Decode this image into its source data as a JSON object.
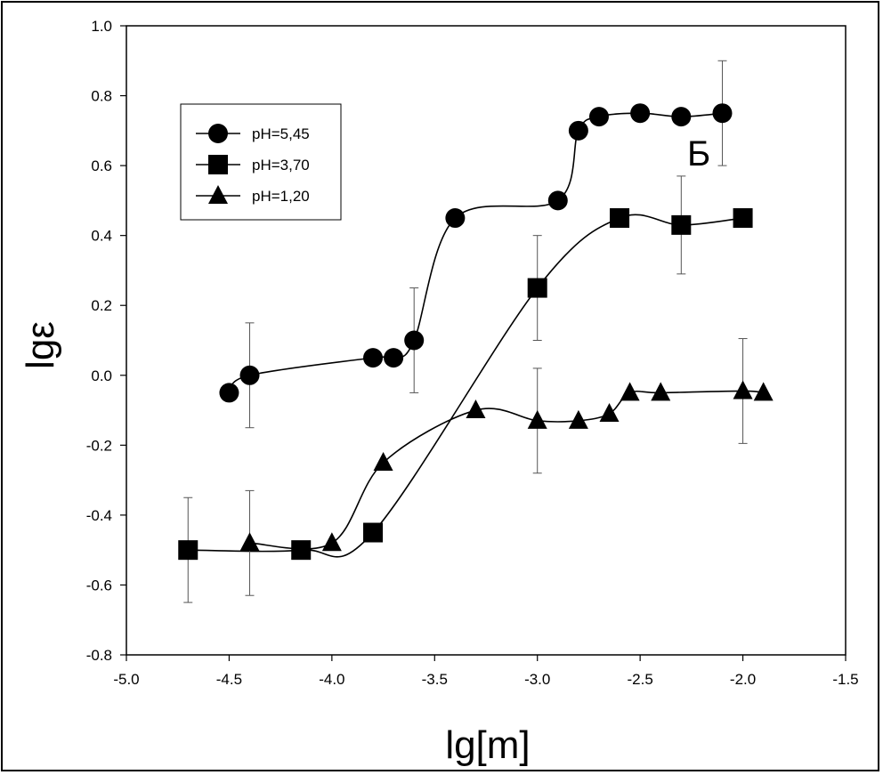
{
  "chart_data": {
    "type": "line",
    "title": "",
    "panel_label": "Б",
    "xlabel": "lg[m]",
    "ylabel": "lgε",
    "xlim": [
      -5.0,
      -1.5
    ],
    "ylim": [
      -0.8,
      1.0
    ],
    "x_ticks": [
      "-5.0",
      "-4.5",
      "-4.0",
      "-3.5",
      "-3.0",
      "-2.5",
      "-2.0",
      "-1.5"
    ],
    "y_ticks": [
      "1.0",
      "0.8",
      "0.6",
      "0.4",
      "0.2",
      "0.0",
      "-0.2",
      "-0.4",
      "-0.6",
      "-0.8"
    ],
    "x_tick_values": [
      -5.0,
      -4.5,
      -4.0,
      -3.5,
      -3.0,
      -2.5,
      -2.0,
      -1.5
    ],
    "y_tick_values": [
      1.0,
      0.8,
      0.6,
      0.4,
      0.2,
      0.0,
      -0.2,
      -0.4,
      -0.6,
      -0.8
    ],
    "legend_position": "top-left",
    "series": [
      {
        "name": "pH=5,45",
        "marker": "circle",
        "x": [
          -4.5,
          -4.4,
          -3.8,
          -3.7,
          -3.6,
          -3.4,
          -2.9,
          -2.8,
          -2.7,
          -2.5,
          -2.3,
          -2.1
        ],
        "y": [
          -0.05,
          0.0,
          0.05,
          0.05,
          0.1,
          0.45,
          0.5,
          0.7,
          0.74,
          0.75,
          0.74,
          0.75
        ],
        "error_bars": [
          {
            "x": -4.4,
            "low": -0.15,
            "high": 0.15
          },
          {
            "x": -3.6,
            "low": -0.05,
            "high": 0.25
          },
          {
            "x": -2.1,
            "low": 0.6,
            "high": 0.9
          }
        ]
      },
      {
        "name": "pH=3,70",
        "marker": "square",
        "x": [
          -4.7,
          -4.15,
          -3.8,
          -3.0,
          -2.6,
          -2.3,
          -2.0
        ],
        "y": [
          -0.5,
          -0.5,
          -0.45,
          0.25,
          0.45,
          0.43,
          0.45
        ],
        "error_bars": [
          {
            "x": -4.7,
            "low": -0.65,
            "high": -0.35
          },
          {
            "x": -3.0,
            "low": 0.1,
            "high": 0.4
          },
          {
            "x": -2.3,
            "low": 0.29,
            "high": 0.57
          }
        ]
      },
      {
        "name": "pH=1,20",
        "marker": "triangle",
        "x": [
          -4.4,
          -4.0,
          -3.75,
          -3.3,
          -3.0,
          -2.8,
          -2.65,
          -2.55,
          -2.4,
          -2.0,
          -1.9
        ],
        "y": [
          -0.48,
          -0.48,
          -0.25,
          -0.1,
          -0.13,
          -0.13,
          -0.11,
          -0.05,
          -0.05,
          -0.045,
          -0.05
        ],
        "error_bars": [
          {
            "x": -4.4,
            "low": -0.63,
            "high": -0.33
          },
          {
            "x": -3.0,
            "low": -0.28,
            "high": 0.02
          },
          {
            "x": -2.0,
            "low": -0.195,
            "high": 0.105
          }
        ]
      }
    ]
  }
}
